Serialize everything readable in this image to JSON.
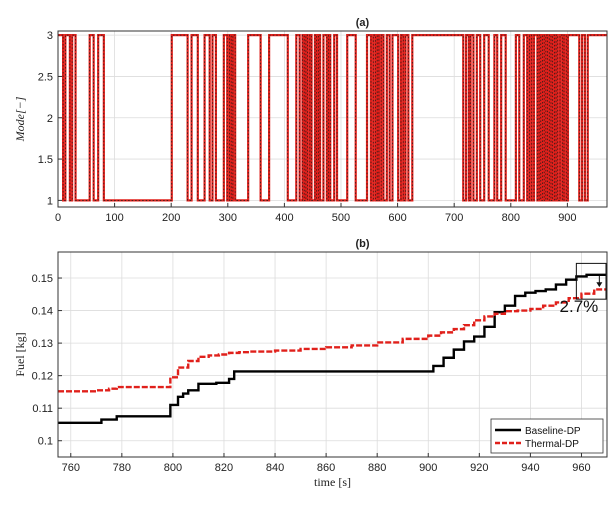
{
  "chart_data": [
    {
      "panel": "(a)",
      "type": "line",
      "title": "(a)",
      "ylabel": "Mode[−]",
      "xlim": [
        0,
        970
      ],
      "ylim": [
        0.92,
        3.05
      ],
      "x_ticks": [
        "0",
        "100",
        "200",
        "300",
        "400",
        "500",
        "600",
        "700",
        "800",
        "900"
      ],
      "y_ticks": [
        "1",
        "1.5",
        "2",
        "2.5",
        "3"
      ],
      "grid": true,
      "series": [
        {
          "color": "#e0201b",
          "style": "solid",
          "x": [
            0,
            8,
            9,
            12,
            13,
            20,
            21,
            24,
            25,
            30,
            31,
            55,
            56,
            62,
            63,
            70,
            71,
            80,
            81,
            90,
            91,
            200,
            201,
            228,
            229,
            235,
            236,
            246,
            247,
            258,
            259,
            267,
            268,
            272,
            273,
            278,
            279,
            292,
            293,
            298,
            299,
            302,
            303,
            305,
            306,
            308,
            309,
            312,
            313,
            335,
            336,
            357,
            358,
            372,
            373,
            405,
            406,
            420,
            421,
            426,
            427,
            431,
            432,
            434,
            435,
            437,
            438,
            440,
            441,
            444,
            445,
            447,
            448,
            453,
            454,
            456,
            457,
            459,
            460,
            462,
            463,
            468,
            469,
            474,
            475,
            477,
            478,
            480,
            481,
            487,
            488,
            492,
            493,
            510,
            511,
            525,
            526,
            545,
            546,
            552,
            553,
            556,
            557,
            560,
            561,
            563,
            564,
            566,
            567,
            570,
            571,
            574,
            575,
            580,
            581,
            585,
            586,
            590,
            591,
            600,
            601,
            605,
            606,
            609,
            610,
            613,
            614,
            618,
            619,
            625,
            626,
            715,
            716,
            720,
            721,
            725,
            726,
            728,
            729,
            733,
            734,
            739,
            740,
            745,
            746,
            752,
            753,
            760,
            761,
            770,
            771,
            775,
            776,
            782,
            783,
            790,
            791,
            808,
            809,
            814,
            815,
            822,
            823,
            828,
            829,
            832,
            833,
            836,
            837,
            840,
            841,
            846,
            847,
            849,
            850,
            852,
            853,
            855,
            856,
            858,
            859,
            861,
            862,
            864,
            865,
            867,
            868,
            870,
            871,
            873,
            874,
            876,
            877,
            879,
            880,
            882,
            883,
            886,
            887,
            890,
            891,
            893,
            894,
            897,
            898,
            900,
            901,
            920,
            921,
            925,
            926,
            930,
            931,
            935,
            936,
            960,
            961,
            970
          ],
          "y": [
            3,
            3,
            1,
            1,
            3,
            3,
            1,
            1,
            3,
            3,
            1,
            1,
            3,
            3,
            1,
            1,
            3,
            3,
            1,
            1,
            1,
            1,
            3,
            3,
            1,
            1,
            3,
            3,
            1,
            1,
            3,
            3,
            1,
            1,
            3,
            3,
            1,
            1,
            3,
            3,
            1,
            1,
            3,
            3,
            1,
            1,
            3,
            3,
            1,
            1,
            3,
            3,
            1,
            1,
            3,
            3,
            1,
            1,
            3,
            3,
            1,
            1,
            3,
            3,
            1,
            1,
            3,
            3,
            1,
            1,
            3,
            3,
            1,
            1,
            3,
            3,
            1,
            1,
            3,
            3,
            1,
            1,
            3,
            3,
            1,
            1,
            3,
            3,
            1,
            1,
            3,
            3,
            1,
            1,
            3,
            3,
            1,
            1,
            3,
            3,
            1,
            1,
            3,
            3,
            1,
            1,
            3,
            3,
            1,
            1,
            3,
            3,
            1,
            1,
            3,
            3,
            1,
            1,
            3,
            3,
            1,
            1,
            3,
            3,
            1,
            1,
            3,
            3,
            1,
            1,
            3,
            3,
            1,
            1,
            3,
            3,
            1,
            1,
            3,
            3,
            1,
            1,
            3,
            3,
            1,
            1,
            3,
            3,
            1,
            1,
            3,
            3,
            1,
            1,
            3,
            3,
            1,
            1,
            3,
            3,
            1,
            1,
            3,
            3,
            1,
            1,
            3,
            3,
            1,
            1,
            3,
            3,
            1,
            1,
            3,
            3,
            1,
            1,
            3,
            3,
            1,
            1,
            3,
            3,
            1,
            1,
            3,
            3,
            1,
            1,
            3,
            3,
            1,
            1,
            3,
            3,
            1,
            1,
            3,
            3,
            1,
            1,
            3,
            3,
            1,
            1,
            3,
            3,
            1,
            1,
            3,
            3,
            1,
            1,
            3,
            3,
            3,
            3
          ]
        }
      ]
    },
    {
      "panel": "(b)",
      "type": "line",
      "title": "(b)",
      "xlabel": "time [s]",
      "ylabel": "Fuel [kg]",
      "xlim": [
        755,
        970
      ],
      "ylim": [
        0.095,
        0.158
      ],
      "x_ticks": [
        "760",
        "780",
        "800",
        "820",
        "840",
        "860",
        "880",
        "900",
        "920",
        "940",
        "960"
      ],
      "y_ticks": [
        "0.1",
        "0.11",
        "0.12",
        "0.13",
        "0.14",
        "0.15"
      ],
      "grid": true,
      "legend": "bottom-right",
      "annotation": "2.7%",
      "series": [
        {
          "name": "Baseline-DP",
          "color": "#000000",
          "style": "solid",
          "x": [
            755,
            770,
            772,
            776,
            778,
            797,
            799,
            802,
            804,
            806,
            810,
            813,
            817,
            822,
            824,
            900,
            902,
            906,
            910,
            914,
            918,
            922,
            926,
            930,
            934,
            938,
            942,
            946,
            950,
            954,
            958,
            962,
            970
          ],
          "y": [
            0.1055,
            0.1055,
            0.1065,
            0.1065,
            0.1075,
            0.1075,
            0.111,
            0.1135,
            0.1145,
            0.1155,
            0.1175,
            0.1175,
            0.1178,
            0.119,
            0.1213,
            0.1213,
            0.123,
            0.1255,
            0.128,
            0.1305,
            0.132,
            0.135,
            0.1395,
            0.1415,
            0.1445,
            0.1455,
            0.146,
            0.1465,
            0.148,
            0.1495,
            0.1505,
            0.151,
            0.151
          ]
        },
        {
          "name": "Thermal-DP",
          "color": "#e0201b",
          "style": "dashed",
          "x": [
            755,
            765,
            770,
            775,
            778,
            796,
            799,
            802,
            806,
            810,
            814,
            818,
            822,
            826,
            830,
            840,
            850,
            860,
            870,
            880,
            890,
            900,
            905,
            910,
            914,
            918,
            922,
            926,
            930,
            935,
            940,
            945,
            950,
            955,
            960,
            965,
            970
          ],
          "y": [
            0.1152,
            0.1152,
            0.1155,
            0.116,
            0.1165,
            0.1165,
            0.1195,
            0.1225,
            0.1245,
            0.1258,
            0.1262,
            0.1265,
            0.127,
            0.1272,
            0.1274,
            0.1277,
            0.1282,
            0.1287,
            0.1293,
            0.1302,
            0.1313,
            0.1323,
            0.1333,
            0.1343,
            0.1355,
            0.137,
            0.1382,
            0.139,
            0.1398,
            0.14,
            0.1405,
            0.1415,
            0.1425,
            0.1438,
            0.1452,
            0.1465,
            0.147
          ]
        }
      ]
    }
  ]
}
